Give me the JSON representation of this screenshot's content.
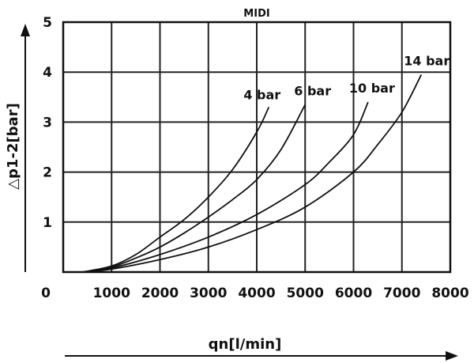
{
  "chart_data": {
    "type": "line",
    "title": "MIDI",
    "xlabel": "qn[l/min]",
    "ylabel": "△p1-2[bar]",
    "xlim": [
      0,
      8000
    ],
    "ylim": [
      0,
      5
    ],
    "x_ticks": [
      "0",
      "1000",
      "2000",
      "3000",
      "4000",
      "5000",
      "6000",
      "7000",
      "8000"
    ],
    "y_ticks": [
      "1",
      "2",
      "3",
      "4",
      "5"
    ],
    "grid": true,
    "series": [
      {
        "name": "4 bar",
        "x": [
          400,
          1000,
          1500,
          2000,
          2500,
          3000,
          3500,
          4000,
          4250
        ],
        "y": [
          0,
          0.12,
          0.35,
          0.7,
          1.05,
          1.5,
          2.05,
          2.8,
          3.3
        ]
      },
      {
        "name": "6 bar",
        "x": [
          400,
          1000,
          1500,
          2000,
          2500,
          3000,
          3500,
          4000,
          4500,
          5000
        ],
        "y": [
          0,
          0.1,
          0.28,
          0.5,
          0.78,
          1.1,
          1.45,
          1.85,
          2.45,
          3.35
        ]
      },
      {
        "name": "10 bar",
        "x": [
          400,
          1000,
          2000,
          3000,
          4000,
          5000,
          5500,
          6000,
          6300
        ],
        "y": [
          0,
          0.08,
          0.35,
          0.7,
          1.15,
          1.75,
          2.2,
          2.75,
          3.4
        ]
      },
      {
        "name": "14 bar",
        "x": [
          400,
          1000,
          2000,
          3000,
          4000,
          5000,
          6000,
          6500,
          7000,
          7400
        ],
        "y": [
          0,
          0.06,
          0.25,
          0.5,
          0.85,
          1.3,
          2.0,
          2.55,
          3.2,
          3.95
        ]
      }
    ]
  }
}
